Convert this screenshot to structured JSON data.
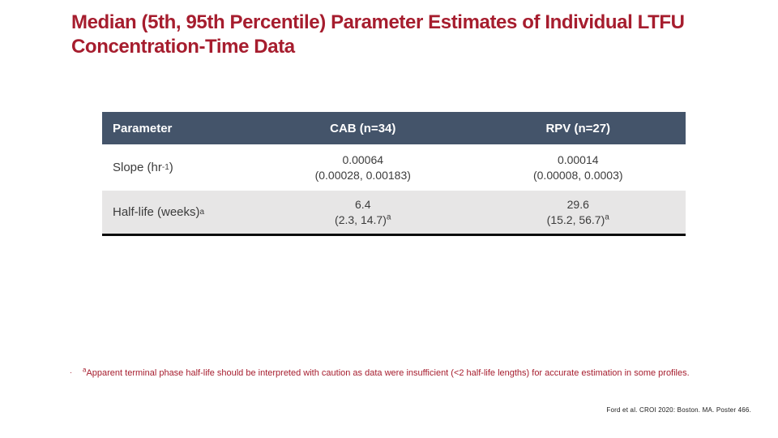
{
  "colors": {
    "title_red": "#A61D2E",
    "footnote_red": "#A61D2E",
    "header_bg": "#44546A",
    "header_text": "#FFFFFF",
    "row_alt_bg": "#E7E6E6",
    "body_text": "#3C3C3C",
    "citation_text": "#1A1A1A"
  },
  "title": {
    "line1": "Median (5th, 95th Percentile) Parameter Estimates of Individual LTFU",
    "line2": "Concentration-Time Data"
  },
  "table": {
    "headers": [
      "Parameter",
      "CAB (n=34)",
      "RPV (n=27)"
    ],
    "rows": [
      {
        "param_base": "Slope (hr",
        "param_sup": "-1",
        "param_close": ")",
        "cab_line1": "0.00064",
        "cab_line2": "(0.00028, 0.00183)",
        "cab_sup": "",
        "rpv_line1": "0.00014",
        "rpv_line2": "(0.00008, 0.0003)",
        "rpv_sup": ""
      },
      {
        "param_base": "Half-life (weeks)",
        "param_sup": "a",
        "param_close": "",
        "cab_line1": "6.4",
        "cab_line2": "(2.3, 14.7)",
        "cab_sup": "a",
        "rpv_line1": "29.6",
        "rpv_line2": "(15.2, 56.7)",
        "rpv_sup": "a"
      }
    ]
  },
  "footnote": {
    "bullet": "·",
    "sup": "a",
    "text": "Apparent terminal phase half-life should be interpreted with caution as data were insufficient (<2 half-life lengths) for accurate estimation in some profiles."
  },
  "citation": "Ford et al. CROI 2020: Boston. MA. Poster 466."
}
